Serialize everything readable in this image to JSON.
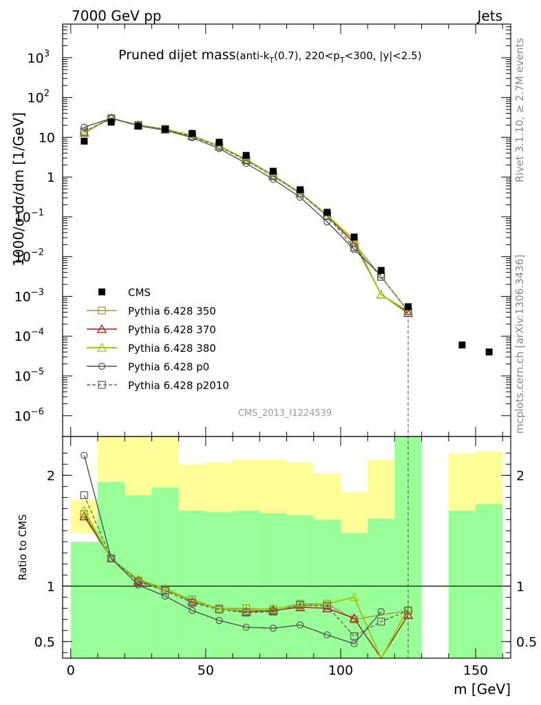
{
  "header": {
    "left": "7000 GeV pp",
    "right": "Jets"
  },
  "title": {
    "main": "Pruned dijet mass",
    "sub_a": "(anti-k",
    "sub_b": "T",
    "sub_c": "(0.7), 220<p",
    "sub_d": "T",
    "sub_e": "<300, |y|<2.5)"
  },
  "side_labels": {
    "rivet": "Rivet 3.1.10, ≥ 2.7M events",
    "mcplots": "mcplots.cern.ch [arXiv:1306.3436]"
  },
  "watermark": "CMS_2013_I1224539",
  "chart_data": {
    "type": "scatter",
    "xlabel": "m [GeV]",
    "ylabel": "1000/σ dσ/dm [1/GeV]",
    "ratio_ylabel": "Ratio to CMS",
    "xlim": [
      -3,
      163
    ],
    "ylim_log": [
      3e-07,
      7000
    ],
    "ratio_ylim": [
      0.35,
      2.35
    ],
    "x_ticks": [
      "0",
      "50",
      "100",
      "150"
    ],
    "y_ticks": [
      "10",
      "10",
      "10",
      "10",
      "10",
      "10",
      "1",
      "10",
      "10",
      "10",
      "10",
      "10",
      "10"
    ],
    "y_tick_exponents": [
      "3",
      "2",
      "",
      "",
      "",
      "",
      "",
      "−1",
      "−2",
      "−3",
      "−4",
      "−5",
      "−6"
    ],
    "ratio_ticks": [
      "2",
      "1",
      "0.5"
    ],
    "legend": {
      "placement": "center-left",
      "entries": [
        "CMS",
        "Pythia 6.428 350",
        "Pythia 6.428 370",
        "Pythia 6.428 380",
        "Pythia 6.428 p0",
        "Pythia 6.428 p2010"
      ]
    },
    "data": {
      "name": "CMS",
      "x": [
        5,
        15,
        25,
        35,
        45,
        55,
        65,
        75,
        85,
        95,
        105,
        115,
        125,
        145,
        155
      ],
      "y": [
        8.0,
        24.0,
        19.0,
        16.0,
        12.5,
        7.5,
        3.5,
        1.4,
        0.48,
        0.13,
        0.031,
        0.0045,
        0.00055,
        6e-05,
        4e-05
      ]
    },
    "series": [
      {
        "name": "Pythia 6.428 350",
        "color": "#9a9a2a",
        "marker": "square",
        "dash": false,
        "x": [
          5,
          15,
          25,
          35,
          45,
          55,
          65,
          75,
          85,
          95,
          105,
          115,
          125
        ],
        "y": [
          13.0,
          30.0,
          20.5,
          16.2,
          11.0,
          6.0,
          2.8,
          1.12,
          0.4,
          0.11,
          0.022,
          0.0031,
          0.00042
        ],
        "ratio": [
          1.65,
          1.25,
          1.05,
          0.96,
          0.88,
          0.8,
          0.8,
          0.79,
          0.84,
          0.84,
          0.7,
          null,
          0.78
        ]
      },
      {
        "name": "Pythia 6.428 370",
        "color": "#a01818",
        "marker": "triangle",
        "dash": false,
        "x": [
          5,
          15,
          25,
          35,
          45,
          55,
          65,
          75,
          85,
          95,
          105,
          115,
          125
        ],
        "y": [
          13.0,
          30.0,
          20.0,
          16.0,
          10.8,
          6.0,
          2.7,
          1.08,
          0.39,
          0.105,
          0.022,
          0.0011,
          0.00038
        ],
        "ratio": [
          1.63,
          1.25,
          1.05,
          0.98,
          0.86,
          0.8,
          0.77,
          0.78,
          0.81,
          0.8,
          0.71,
          0.25,
          0.74
        ]
      },
      {
        "name": "Pythia 6.428 380",
        "color": "#9acd1e",
        "marker": "triangle",
        "dash": false,
        "x": [
          5,
          15,
          25,
          35,
          45,
          55,
          65,
          75,
          85,
          95,
          105,
          115,
          125
        ],
        "y": [
          13.5,
          30.0,
          20.0,
          16.0,
          11.0,
          6.0,
          2.8,
          1.1,
          0.4,
          0.11,
          0.026,
          0.0011,
          0.00042
        ],
        "ratio": [
          1.68,
          1.25,
          1.06,
          0.98,
          0.87,
          0.8,
          0.78,
          0.8,
          0.82,
          0.84,
          0.9,
          0.25,
          0.8
        ]
      },
      {
        "name": "Pythia 6.428 p0",
        "color": "#505050",
        "marker": "circle",
        "dash": false,
        "x": [
          5,
          15,
          25,
          35,
          45,
          55,
          65,
          75,
          85,
          95,
          105,
          115,
          125
        ],
        "y": [
          18.0,
          30.0,
          19.5,
          15.0,
          9.8,
          5.2,
          2.2,
          0.88,
          0.31,
          0.075,
          0.015,
          0.0034,
          null
        ],
        "ratio": [
          2.18,
          1.25,
          1.01,
          0.91,
          0.78,
          0.69,
          0.63,
          0.62,
          0.65,
          0.56,
          0.48,
          0.77,
          null
        ]
      },
      {
        "name": "Pythia 6.428 p2010",
        "color": "#606060",
        "marker": "square",
        "dash": true,
        "x": [
          5,
          15,
          25,
          35,
          45,
          55,
          65,
          75,
          85,
          95,
          105,
          115,
          125
        ],
        "y": [
          14.0,
          30.0,
          20.0,
          15.5,
          10.5,
          5.8,
          2.6,
          1.05,
          0.39,
          0.105,
          0.017,
          0.0031,
          0.00043
        ],
        "ratio": [
          1.82,
          1.25,
          1.04,
          0.96,
          0.85,
          0.79,
          0.76,
          0.77,
          0.83,
          0.82,
          0.55,
          0.68,
          0.78
        ]
      }
    ],
    "ratio_bands": {
      "x_edges": [
        0,
        10,
        20,
        30,
        40,
        50,
        60,
        70,
        80,
        90,
        100,
        110,
        120,
        130,
        140,
        150,
        160
      ],
      "yellow_lo": [
        1.48,
        0.3,
        0.3,
        0.3,
        0.52,
        0.46,
        0.45,
        0.44,
        0.52,
        0.56,
        0.64,
        0.52,
        0.3,
        null,
        0.3,
        0.3
      ],
      "yellow_hi": [
        1.78,
        2.5,
        2.5,
        2.5,
        2.1,
        2.12,
        2.14,
        2.14,
        2.12,
        2.02,
        1.85,
        2.14,
        2.5,
        null,
        2.2,
        2.22
      ],
      "green_lo": [
        0.3,
        0.3,
        0.3,
        0.3,
        0.3,
        0.3,
        0.3,
        0.3,
        0.3,
        0.3,
        0.3,
        0.3,
        0.3,
        null,
        0.3,
        0.3
      ],
      "green_hi": [
        1.4,
        1.94,
        1.82,
        1.89,
        1.68,
        1.67,
        1.68,
        1.66,
        1.64,
        1.6,
        1.48,
        1.61,
        2.5,
        null,
        1.68,
        1.74
      ]
    }
  }
}
